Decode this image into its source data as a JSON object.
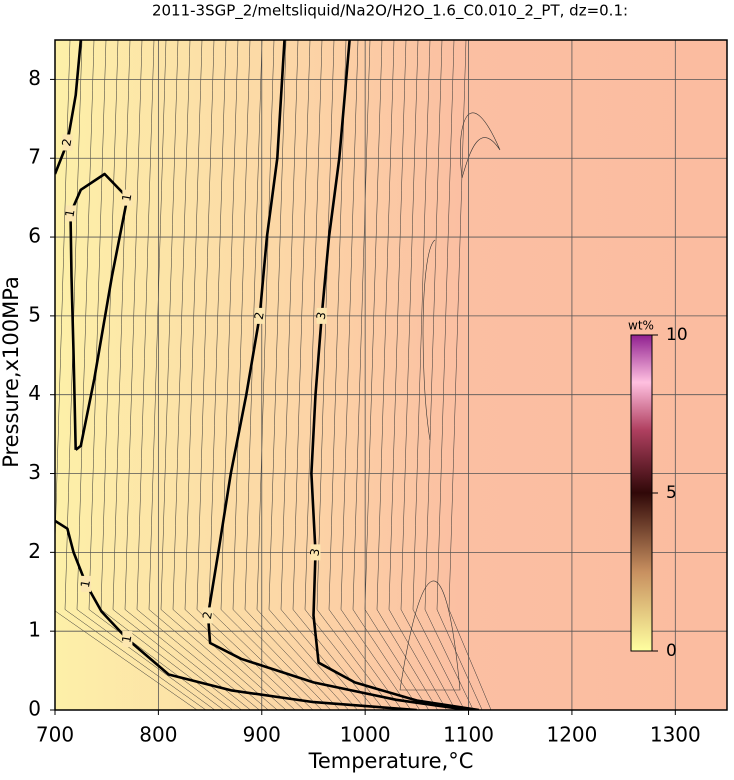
{
  "chart_data": {
    "type": "contour",
    "title": "2011-3SGP_2/meltsliquid/Na2O/H2O_1.6_C0.010_2_PT, dz=0.1:",
    "xlabel": "Temperature,°C",
    "ylabel": "Pressure,x100MPa",
    "xlim": [
      700,
      1350
    ],
    "xticks": [
      700,
      800,
      900,
      1000,
      1100,
      1200,
      1300
    ],
    "ylim": [
      0,
      8.5
    ],
    "yticks": [
      0,
      1,
      2,
      3,
      4,
      5,
      6,
      7,
      8
    ],
    "grid": true,
    "contours": [
      {
        "level": 1,
        "x": [
          700,
          712,
          718,
          730,
          745,
          770,
          810,
          870,
          950,
          1050
        ],
        "y": [
          2.4,
          2.3,
          2.0,
          1.6,
          1.25,
          0.9,
          0.45,
          0.25,
          0.1,
          0
        ]
      },
      {
        "level": 1,
        "x": [
          720,
          718,
          716,
          715,
          725,
          748,
          770,
          755,
          738,
          725,
          720
        ],
        "y": [
          3.3,
          4.5,
          5.5,
          6.3,
          6.6,
          6.8,
          6.5,
          5.5,
          4.2,
          3.35,
          3.3
        ]
      },
      {
        "level": 2,
        "x": [
          700,
          712,
          720,
          725
        ],
        "y": [
          6.8,
          7.2,
          7.8,
          8.5
        ]
      },
      {
        "level": 2,
        "x": [
          922,
          915,
          905,
          898,
          885,
          870,
          858,
          848,
          850,
          880,
          950,
          1030,
          1100
        ],
        "y": [
          8.5,
          7,
          6,
          5,
          4,
          3,
          2,
          1.2,
          0.85,
          0.65,
          0.35,
          0.13,
          0
        ]
      },
      {
        "level": 3,
        "x": [
          985,
          975,
          965,
          958,
          952,
          948,
          952,
          950,
          955,
          990,
          1050,
          1110
        ],
        "y": [
          8.5,
          7,
          6,
          5,
          4,
          3,
          2,
          1.2,
          0.6,
          0.35,
          0.12,
          0
        ]
      }
    ],
    "colorbar": {
      "label": "wt%",
      "lim": [
        0,
        10
      ],
      "ticks": [
        0,
        5,
        10
      ]
    }
  }
}
